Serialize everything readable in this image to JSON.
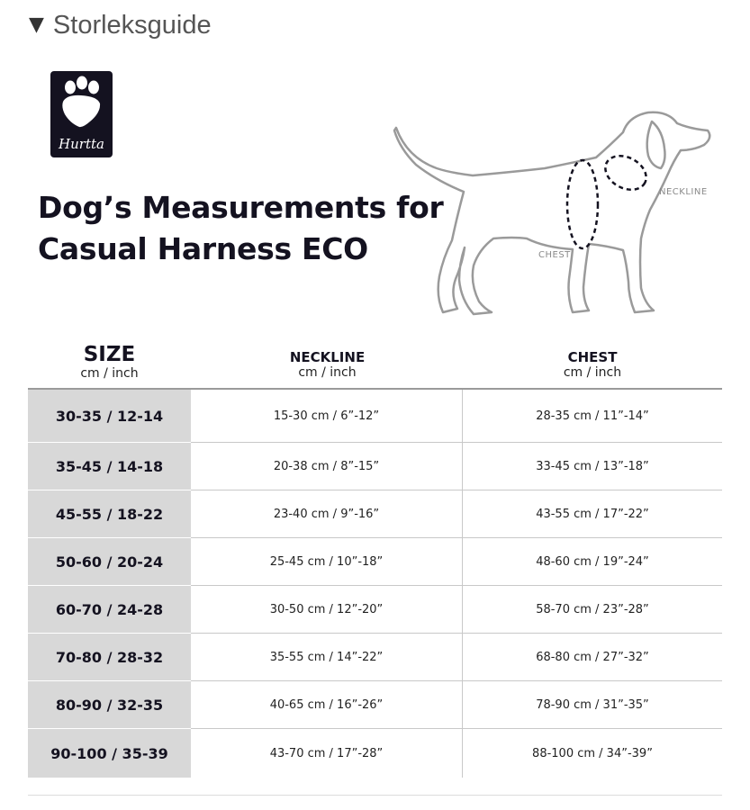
{
  "details": {
    "summary_label": "Storleksguide"
  },
  "logo": {
    "brand": "Hurtta"
  },
  "heading": {
    "line1": "Dog’s Measurements for",
    "line2": "Casual Harness ECO"
  },
  "illustration": {
    "neck_label": "NECKLINE",
    "chest_label": "CHEST"
  },
  "table": {
    "headers": [
      {
        "title": "SIZE",
        "unit": "cm / inch"
      },
      {
        "title": "NECKLINE",
        "unit": "cm / inch"
      },
      {
        "title": "CHEST",
        "unit": "cm / inch"
      }
    ],
    "rows": [
      {
        "size": "30-35 / 12-14",
        "neckline": "15-30 cm / 6”-12”",
        "chest": "28-35 cm / 11”-14”"
      },
      {
        "size": "35-45 / 14-18",
        "neckline": "20-38 cm / 8”-15”",
        "chest": "33-45 cm / 13”-18”"
      },
      {
        "size": "45-55 / 18-22",
        "neckline": "23-40 cm / 9”-16”",
        "chest": "43-55 cm / 17”-22”"
      },
      {
        "size": "50-60 / 20-24",
        "neckline": "25-45 cm / 10”-18”",
        "chest": "48-60 cm / 19”-24”"
      },
      {
        "size": "60-70 / 24-28",
        "neckline": "30-50 cm / 12”-20”",
        "chest": "58-70 cm / 23”-28”"
      },
      {
        "size": "70-80 / 28-32",
        "neckline": "35-55 cm / 14”-22”",
        "chest": "68-80 cm / 27”-32”"
      },
      {
        "size": "80-90 / 32-35",
        "neckline": "40-65 cm / 16”-26”",
        "chest": "78-90 cm / 31”-35”"
      },
      {
        "size": "90-100 / 35-39",
        "neckline": "43-70 cm / 17”-28”",
        "chest": "88-100 cm / 34”-39”"
      }
    ]
  }
}
